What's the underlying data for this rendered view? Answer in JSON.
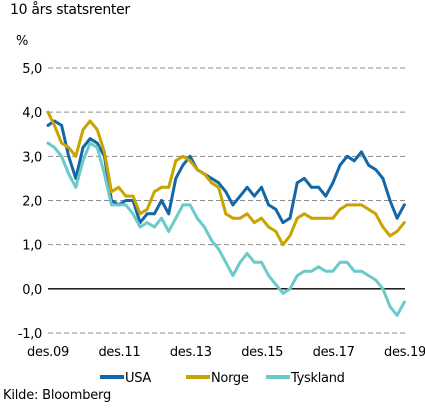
{
  "title": "10 års statsrenter",
  "unit": "%",
  "source": "Kilde: Bloomberg",
  "chart_data": {
    "type": "line",
    "title": "10 års statsrenter",
    "ylabel": "%",
    "ylim": [
      -1.0,
      5.0
    ],
    "yticks": [
      5.0,
      4.0,
      3.0,
      2.0,
      1.0,
      0.0,
      -1.0
    ],
    "ytick_labels": [
      "5,0",
      "4,0",
      "3,0",
      "2,0",
      "1,0",
      "0,0",
      "-1,0"
    ],
    "xlim": [
      2009.92,
      2019.92
    ],
    "xticks": [
      2009.92,
      2011.92,
      2013.92,
      2015.92,
      2017.92,
      2019.92
    ],
    "xtick_labels": [
      "des.09",
      "des.11",
      "des.13",
      "des.15",
      "des.17",
      "des.19"
    ],
    "grid": "horizontal dashed",
    "legend": "bottom",
    "series": [
      {
        "name": "USA",
        "color": "#1467a6",
        "x": [
          2009.92,
          2010.1,
          2010.3,
          2010.5,
          2010.7,
          2010.9,
          2011.1,
          2011.3,
          2011.5,
          2011.7,
          2011.9,
          2012.1,
          2012.3,
          2012.5,
          2012.7,
          2012.9,
          2013.1,
          2013.3,
          2013.5,
          2013.7,
          2013.9,
          2014.1,
          2014.3,
          2014.5,
          2014.7,
          2014.9,
          2015.1,
          2015.3,
          2015.5,
          2015.7,
          2015.9,
          2016.1,
          2016.3,
          2016.5,
          2016.7,
          2016.9,
          2017.1,
          2017.3,
          2017.5,
          2017.7,
          2017.9,
          2018.1,
          2018.3,
          2018.5,
          2018.7,
          2018.9,
          2019.1,
          2019.3,
          2019.5,
          2019.7,
          2019.9
        ],
        "values": [
          3.7,
          3.8,
          3.7,
          3.0,
          2.5,
          3.2,
          3.4,
          3.3,
          3.0,
          2.0,
          1.9,
          2.0,
          2.0,
          1.5,
          1.7,
          1.7,
          2.0,
          1.7,
          2.5,
          2.8,
          3.0,
          2.7,
          2.6,
          2.5,
          2.4,
          2.2,
          1.9,
          2.1,
          2.3,
          2.1,
          2.3,
          1.9,
          1.8,
          1.5,
          1.6,
          2.4,
          2.5,
          2.3,
          2.3,
          2.1,
          2.4,
          2.8,
          3.0,
          2.9,
          3.1,
          2.8,
          2.7,
          2.5,
          2.0,
          1.6,
          1.9
        ]
      },
      {
        "name": "Norge",
        "color": "#c9a400",
        "x": [
          2009.92,
          2010.1,
          2010.3,
          2010.5,
          2010.7,
          2010.9,
          2011.1,
          2011.3,
          2011.5,
          2011.7,
          2011.9,
          2012.1,
          2012.3,
          2012.5,
          2012.7,
          2012.9,
          2013.1,
          2013.3,
          2013.5,
          2013.7,
          2013.9,
          2014.1,
          2014.3,
          2014.5,
          2014.7,
          2014.9,
          2015.1,
          2015.3,
          2015.5,
          2015.7,
          2015.9,
          2016.1,
          2016.3,
          2016.5,
          2016.7,
          2016.9,
          2017.1,
          2017.3,
          2017.5,
          2017.7,
          2017.9,
          2018.1,
          2018.3,
          2018.5,
          2018.7,
          2018.9,
          2019.1,
          2019.3,
          2019.5,
          2019.7,
          2019.9
        ],
        "values": [
          4.0,
          3.7,
          3.3,
          3.2,
          3.0,
          3.6,
          3.8,
          3.6,
          3.1,
          2.2,
          2.3,
          2.1,
          2.1,
          1.7,
          1.8,
          2.2,
          2.3,
          2.3,
          2.9,
          3.0,
          2.9,
          2.7,
          2.6,
          2.4,
          2.3,
          1.7,
          1.6,
          1.6,
          1.7,
          1.5,
          1.6,
          1.4,
          1.3,
          1.0,
          1.2,
          1.6,
          1.7,
          1.6,
          1.6,
          1.6,
          1.6,
          1.8,
          1.9,
          1.9,
          1.9,
          1.8,
          1.7,
          1.4,
          1.2,
          1.3,
          1.5
        ]
      },
      {
        "name": "Tyskland",
        "color": "#6ccac9",
        "x": [
          2009.92,
          2010.1,
          2010.3,
          2010.5,
          2010.7,
          2010.9,
          2011.1,
          2011.3,
          2011.5,
          2011.7,
          2011.9,
          2012.1,
          2012.3,
          2012.5,
          2012.7,
          2012.9,
          2013.1,
          2013.3,
          2013.5,
          2013.7,
          2013.9,
          2014.1,
          2014.3,
          2014.5,
          2014.7,
          2014.9,
          2015.1,
          2015.3,
          2015.5,
          2015.7,
          2015.9,
          2016.1,
          2016.3,
          2016.5,
          2016.7,
          2016.9,
          2017.1,
          2017.3,
          2017.5,
          2017.7,
          2017.9,
          2018.1,
          2018.3,
          2018.5,
          2018.7,
          2018.9,
          2019.1,
          2019.3,
          2019.5,
          2019.7,
          2019.9
        ],
        "values": [
          3.3,
          3.2,
          3.0,
          2.6,
          2.3,
          2.9,
          3.3,
          3.2,
          2.6,
          1.9,
          1.9,
          1.9,
          1.7,
          1.4,
          1.5,
          1.4,
          1.6,
          1.3,
          1.6,
          1.9,
          1.9,
          1.6,
          1.4,
          1.1,
          0.9,
          0.6,
          0.3,
          0.6,
          0.8,
          0.6,
          0.6,
          0.3,
          0.1,
          -0.1,
          0.0,
          0.3,
          0.4,
          0.4,
          0.5,
          0.4,
          0.4,
          0.6,
          0.6,
          0.4,
          0.4,
          0.3,
          0.2,
          0.0,
          -0.4,
          -0.6,
          -0.3
        ]
      }
    ]
  }
}
